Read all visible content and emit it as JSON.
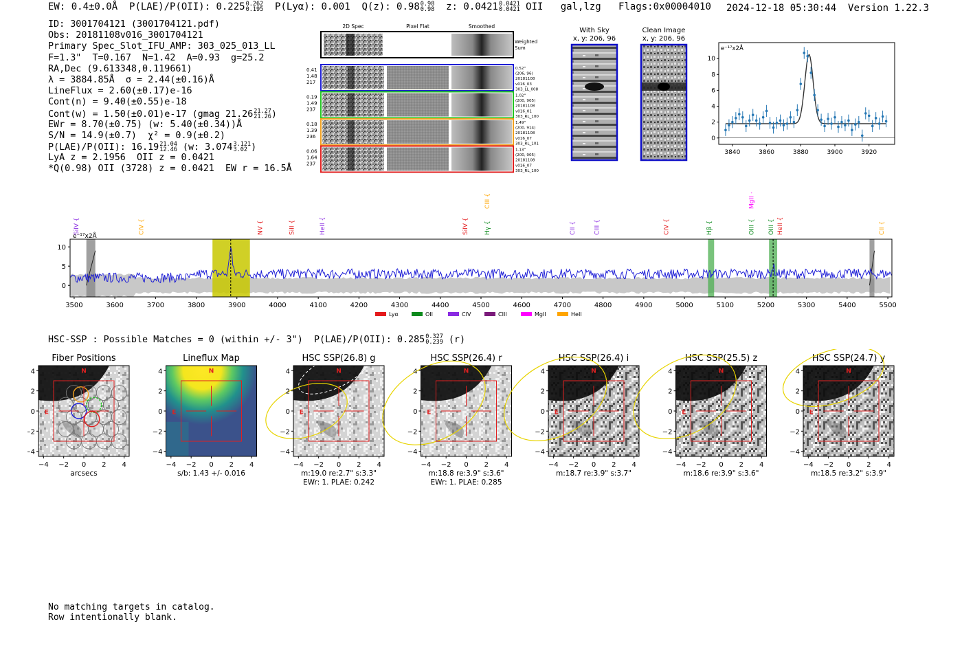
{
  "header": {
    "ew": "EW: 0.4±0.0Å",
    "plae_label": "P(LAE)/P(OII): 0.225",
    "plae_hi": "0.262",
    "plae_lo": "0.195",
    "plya": "P(Lyα): 0.001",
    "qz_label": "Q(z): 0.98",
    "qz_hi": "0.98",
    "qz_lo": "0.98",
    "z_label": "z: 0.0421",
    "z_hi": "0.0421",
    "z_lo": "0.0421",
    "z_line": "OII",
    "flags": "gal,lzg   Flags:0x00004010",
    "timestamp": "2024-12-18 05:30:44",
    "version": "Version 1.22.3"
  },
  "info": {
    "id": "ID: 3001704121 (3001704121.pdf)",
    "obs": "Obs: 20181108v016_3001704121",
    "slot": "Primary Spec_Slot_IFU_AMP: 303_025_013_LL",
    "params": "F=1.3\"  T=0.167  N=1.42  A=0.93  g=25.2",
    "radec": "RA,Dec (9.613348,0.119661)",
    "lambda": "λ = 3884.85Å  σ = 2.44(±0.16)Å",
    "lineflux": "LineFlux = 2.60(±0.17)e-16",
    "contn": "Cont(n) = 9.40(±0.55)e-18",
    "contw": "Cont(w) = 1.50(±0.01)e-17 (gmag 21.26",
    "contw_hi": "21.27",
    "contw_lo": "21.26",
    "ewr": "EWr = 8.70(±0.75) (w: 5.40(±0.34))Å",
    "sn": "S/N = 14.9(±0.7)  χ² = 0.9(±0.2)",
    "plae": "P(LAE)/P(OII): 16.19",
    "plae_hi": "21.04",
    "plae_lo": "12.46",
    "plae_w": "(w: 3.074",
    "plae_w_hi": "3.121",
    "plae_w_lo": "3.02",
    "lya": "LyA z = 2.1956  OII z = 0.0421",
    "q": "*Q(0.98) OII (3728) z = 0.0421  EW r = 16.5Å"
  },
  "spec_cutouts": {
    "col_titles": [
      "2D Spec",
      "Pixel Flat",
      "Smoothed"
    ],
    "weighted_sum": "Weighted Sum",
    "rows": [
      {
        "left": [
          "0.41",
          "1.48",
          "217"
        ],
        "right": [
          "0.52\"",
          "(206, 96)",
          "20181108",
          "v016_03",
          "303_LL_008"
        ],
        "color": "#1f1fd6"
      },
      {
        "left": [
          "0.19",
          "1.49",
          "237"
        ],
        "right": [
          "1.02\"",
          "(200, 905)",
          "20181108",
          "v016_01",
          "303_RL_100"
        ],
        "color": "#22c422"
      },
      {
        "left": [
          "0.18",
          "1.39",
          "236"
        ],
        "right": [
          "1.49\"",
          "(200, 914)",
          "20181108",
          "v016_07",
          "303_RL_101"
        ],
        "color": "#f0a020"
      },
      {
        "left": [
          "0.06",
          "1.64",
          "237"
        ],
        "right": [
          "1.13\"",
          "(200, 905)",
          "20181108",
          "v016_07",
          "303_RL_100"
        ],
        "color": "#e02020"
      }
    ]
  },
  "sky_panels": {
    "with_sky_title": "With Sky",
    "with_sky_coords": "x, y: 206, 96",
    "clean_title": "Clean Image",
    "clean_coords": "x, y: 206, 96"
  },
  "colors": {
    "blue": "#1f1fd6",
    "red": "#e02020",
    "green": "#22c422",
    "orange": "#f0a020",
    "gray_band": "#c8c8c8",
    "fit_blue": "#2577b4",
    "olive": "#c8c800",
    "green_band": "#4caf50"
  },
  "legend": [
    {
      "label": "Lyα",
      "color": "#e41a1c"
    },
    {
      "label": "OII",
      "color": "#0b8a1c"
    },
    {
      "label": "CIV",
      "color": "#8a2be2"
    },
    {
      "label": "CIII",
      "color": "#7a1a7a"
    },
    {
      "label": "MgII",
      "color": "#ff00ff"
    },
    {
      "label": "HeII",
      "color": "#ffa500"
    }
  ],
  "line_labels": [
    {
      "name": "SiIV",
      "wave": 3510,
      "color": "#8a2be2",
      "row": 0
    },
    {
      "name": "CIV",
      "wave": 3670,
      "color": "#ffa500",
      "row": 0
    },
    {
      "name": "NV",
      "wave": 3962,
      "color": "#e41a1c",
      "row": 0
    },
    {
      "name": "SiII",
      "wave": 4040,
      "color": "#e41a1c",
      "row": 0
    },
    {
      "name": "HeII",
      "wave": 4115,
      "color": "#8a2be2",
      "row": 0
    },
    {
      "name": "SiIV",
      "wave": 4466,
      "color": "#e41a1c",
      "row": 0
    },
    {
      "name": "CIII",
      "wave": 4520,
      "color": "#ffa500",
      "row": 1
    },
    {
      "name": "Hγ",
      "wave": 4520,
      "color": "#0b8a1c",
      "row": 0
    },
    {
      "name": "CII",
      "wave": 4730,
      "color": "#8a2be2",
      "row": 0
    },
    {
      "name": "CIII",
      "wave": 4790,
      "color": "#8a2be2",
      "row": 0
    },
    {
      "name": "CIV",
      "wave": 4960,
      "color": "#e41a1c",
      "row": 0
    },
    {
      "name": "Hβ",
      "wave": 5066,
      "color": "#0b8a1c",
      "row": 0
    },
    {
      "name": "MgII",
      "wave": 5170,
      "color": "#ff00ff",
      "row": 1
    },
    {
      "name": "OIII",
      "wave": 5170,
      "color": "#0b8a1c",
      "row": 0
    },
    {
      "name": "OIII",
      "wave": 5218,
      "color": "#0b8a1c",
      "row": 0
    },
    {
      "name": "HeII",
      "wave": 5240,
      "color": "#e41a1c",
      "row": 0
    },
    {
      "name": "CII",
      "wave": 5490,
      "color": "#ffa500",
      "row": 0
    }
  ],
  "chart_data": [
    {
      "id": "line-fit",
      "type": "scatter",
      "title": "",
      "units": "e⁻¹⁷x2Å",
      "xlim": [
        3832,
        3935
      ],
      "ylim": [
        -0.8,
        12
      ],
      "xticks": [
        3840,
        3860,
        3880,
        3900,
        3920
      ],
      "yticks": [
        0,
        2,
        4,
        6,
        8,
        10
      ],
      "x": [
        3836,
        3838,
        3840,
        3842,
        3844,
        3846,
        3848,
        3850,
        3852,
        3854,
        3856,
        3858,
        3860,
        3862,
        3864,
        3866,
        3868,
        3870,
        3872,
        3874,
        3876,
        3878,
        3880,
        3882,
        3884,
        3886,
        3888,
        3890,
        3892,
        3894,
        3896,
        3898,
        3900,
        3902,
        3904,
        3906,
        3908,
        3910,
        3912,
        3914,
        3916,
        3918,
        3920,
        3922,
        3924,
        3926,
        3928,
        3930
      ],
      "y": [
        1.0,
        1.6,
        2.0,
        2.5,
        3.0,
        2.6,
        1.5,
        2.2,
        2.9,
        2.2,
        1.8,
        2.6,
        3.4,
        1.9,
        1.3,
        1.9,
        2.2,
        1.6,
        1.8,
        2.6,
        2.0,
        3.5,
        6.8,
        10.7,
        10.3,
        8.2,
        5.4,
        3.5,
        2.3,
        1.5,
        2.4,
        1.8,
        2.6,
        1.4,
        2.0,
        1.6,
        2.2,
        1.0,
        1.7,
        2.0,
        0.3,
        3.1,
        2.8,
        1.5,
        2.5,
        1.8,
        2.7,
        2.1
      ],
      "err": 0.75,
      "fit": {
        "continuum": 1.8,
        "amplitude": 8.7,
        "center": 3884.85,
        "sigma": 2.44
      }
    },
    {
      "id": "full-spectrum",
      "type": "line",
      "units": "e⁻¹⁷x2Å",
      "xlim": [
        3490,
        5510
      ],
      "ylim": [
        -3,
        12
      ],
      "xticks": [
        3500,
        3600,
        3700,
        3800,
        3900,
        4000,
        4100,
        4200,
        4300,
        4400,
        4500,
        4600,
        4700,
        4800,
        4900,
        5000,
        5100,
        5200,
        5300,
        5400,
        5500
      ],
      "yticks": [
        0,
        5,
        10
      ],
      "flux_level": 3.0,
      "emission_line": {
        "center": 3884.85,
        "peak": 10.5
      },
      "highlight_band": [
        3840,
        3932
      ],
      "gray_hatched": [
        [
          3530,
          3552
        ],
        [
          5455,
          5467
        ]
      ],
      "green_bands": [
        [
          5058,
          5073
        ],
        [
          5208,
          5228
        ]
      ],
      "dashed_lines": [
        3884.85,
        5218
      ]
    }
  ],
  "hsc": {
    "title": "HSC-SSP : Possible Matches = 0 (within +/- 3\")  P(LAE)/P(OII): 0.285",
    "plae_hi": "0.327",
    "plae_lo": "0.239",
    "plae_band": "(r)",
    "north_label": "N",
    "east_label": "E",
    "panels": [
      {
        "title": "Fiber Positions",
        "footer1": "arcsecs",
        "footer2": ""
      },
      {
        "title": "Lineflux Map",
        "footer1": "s/b: 1.43 +/- 0.016",
        "footer2": ""
      },
      {
        "title": "HSC SSP(26.8) g",
        "footer1": "m:19.0  re:2.7\"  s:3.3\"",
        "footer2": "EWr: 1. PLAE: 0.242"
      },
      {
        "title": "HSC SSP(26.4) r",
        "footer1": "m:18.8  re:3.9\"  s:3.6\"",
        "footer2": "EWr: 1. PLAE: 0.285"
      },
      {
        "title": "HSC SSP(26.4) i",
        "footer1": "m:18.7  re:3.9\"  s:3.7\"",
        "footer2": ""
      },
      {
        "title": "HSC SSP(25.5) z",
        "footer1": "m:18.6  re:3.9\"  s:3.6\"",
        "footer2": ""
      },
      {
        "title": "HSC SSP(24.7) y",
        "footer1": "m:18.5  re:3.2\"  s:3.9\"",
        "footer2": ""
      }
    ],
    "tick_labels_y": [
      "4",
      "2",
      "0",
      "−2",
      "−4"
    ],
    "tick_labels_x": [
      "−4",
      "−2",
      "0",
      "2",
      "4"
    ]
  },
  "footer": {
    "line1": "No matching targets in catalog.",
    "line2": "Row intentionally blank."
  }
}
